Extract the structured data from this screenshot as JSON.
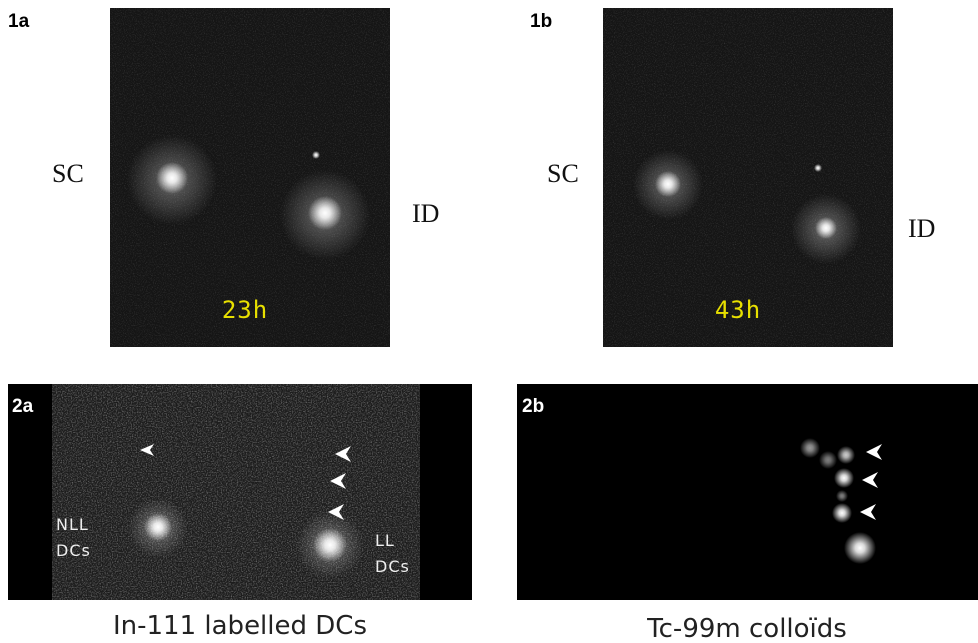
{
  "panels": [
    {
      "label": "1a",
      "time": "23h",
      "left": "SC",
      "right": "ID"
    },
    {
      "label": "1b",
      "time": "43h",
      "left": "SC",
      "right": "ID"
    },
    {
      "label": "2a",
      "left": [
        "NLL",
        "DCs"
      ],
      "right": [
        "LL",
        "DCs"
      ]
    },
    {
      "label": "2b"
    }
  ],
  "captions": [
    "In-111 labelled DCs",
    "Tc-99m colloïds"
  ]
}
